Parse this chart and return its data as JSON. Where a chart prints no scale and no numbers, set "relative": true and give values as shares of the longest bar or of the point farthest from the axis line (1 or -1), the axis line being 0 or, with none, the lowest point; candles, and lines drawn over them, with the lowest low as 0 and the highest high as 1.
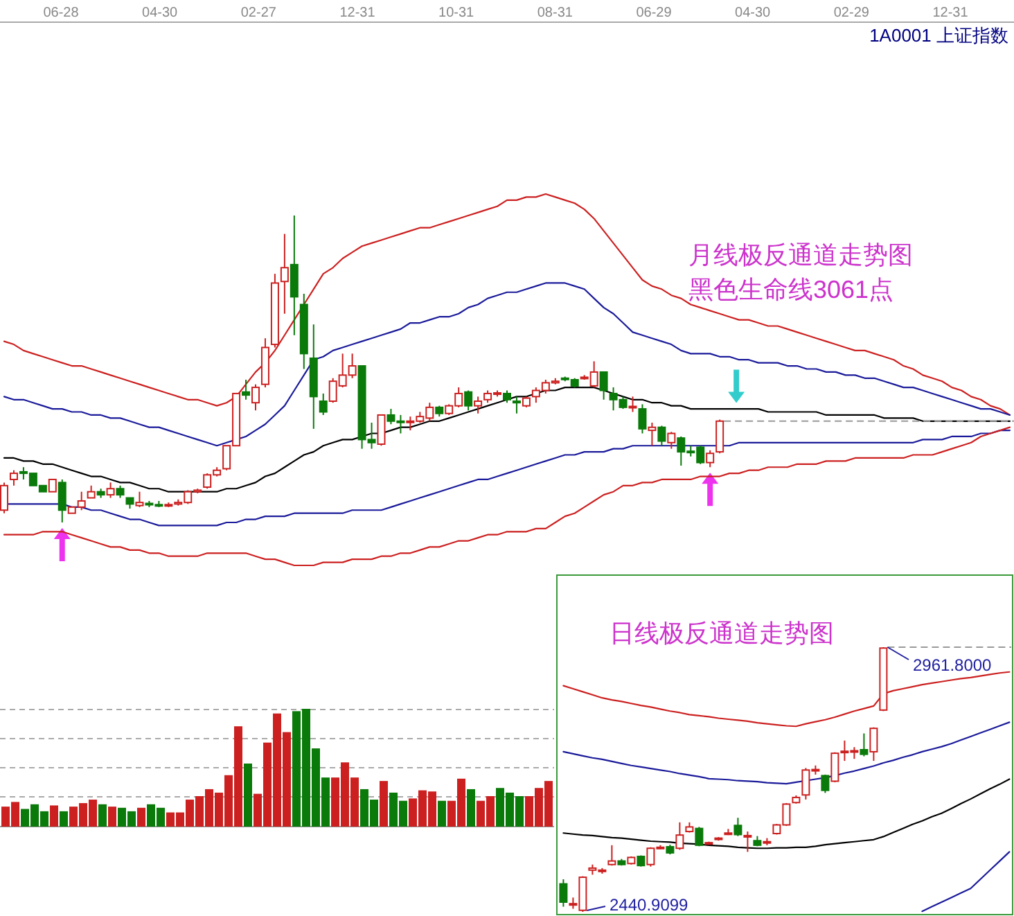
{
  "chart_data": [
    {
      "type": "other",
      "annotations": [
        "06-28",
        "04-30",
        "02-27",
        "12-31",
        "10-31",
        "08-31",
        "06-29",
        "04-30",
        "02-29",
        "12-31"
      ]
    },
    {
      "type": "candlestick",
      "title": "1A0001 上证指数",
      "relative": true,
      "categories": [
        null,
        null,
        null,
        null,
        null,
        null,
        null,
        null,
        null,
        null,
        null,
        null,
        null,
        null,
        null,
        null,
        null,
        null,
        null,
        null,
        null,
        null,
        null,
        null,
        null,
        null,
        null,
        null,
        null,
        null,
        null,
        null,
        null,
        null,
        null,
        null,
        null,
        null,
        null,
        null,
        null,
        null,
        null,
        null,
        null,
        null,
        null,
        null,
        null,
        null,
        null,
        null,
        null,
        null,
        null,
        null,
        null,
        null,
        null,
        null,
        null,
        null,
        null,
        null,
        null,
        null,
        null,
        null,
        null,
        null,
        null,
        null,
        null,
        null,
        null,
        null,
        null,
        null,
        null,
        null,
        null,
        null,
        null,
        null,
        null,
        null,
        null,
        null,
        null,
        null,
        null,
        null,
        null,
        null,
        null,
        null,
        null,
        null,
        null,
        null,
        null,
        null,
        null,
        null,
        null
      ],
      "ohlc": [
        [
          0.04,
          0.13,
          0.03,
          0.12
        ],
        [
          0.14,
          0.17,
          0.12,
          0.16
        ],
        [
          0.165,
          0.18,
          0.14,
          0.16
        ],
        [
          0.16,
          0.16,
          0.12,
          0.12
        ],
        [
          0.12,
          0.12,
          0.1,
          0.1
        ],
        [
          0.1,
          0.14,
          0.1,
          0.14
        ],
        [
          0.13,
          0.14,
          0,
          0.04
        ],
        [
          0.03,
          0.05,
          0.03,
          0.05
        ],
        [
          0.05,
          0.1,
          0.04,
          0.07
        ],
        [
          0.08,
          0.12,
          0.08,
          0.1
        ],
        [
          0.1,
          0.11,
          0.08,
          0.09
        ],
        [
          0.09,
          0.13,
          0.08,
          0.11
        ],
        [
          0.11,
          0.12,
          0.08,
          0.09
        ],
        [
          0.08,
          0.08,
          0.045,
          0.06
        ],
        [
          0.055,
          0.1,
          0.05,
          0.065
        ],
        [
          0.062,
          0.07,
          0.05,
          0.058
        ],
        [
          0.058,
          0.07,
          0.05,
          0.055
        ],
        [
          0.055,
          0.065,
          0.05,
          0.058
        ],
        [
          0.06,
          0.075,
          0.055,
          0.065
        ],
        [
          0.065,
          0.105,
          0.06,
          0.1
        ],
        [
          0.1,
          0.11,
          0.095,
          0.105
        ],
        [
          0.115,
          0.16,
          0.11,
          0.155
        ],
        [
          0.155,
          0.18,
          0.15,
          0.17
        ],
        [
          0.175,
          0.25,
          0.17,
          0.25
        ],
        [
          0.25,
          0.42,
          0.25,
          0.42
        ],
        [
          0.425,
          0.465,
          0.4,
          0.415
        ],
        [
          0.39,
          0.45,
          0.365,
          0.44
        ],
        [
          0.45,
          0.6,
          0.44,
          0.57
        ],
        [
          0.58,
          0.81,
          0.57,
          0.78
        ],
        [
          0.785,
          0.94,
          0.68,
          0.83
        ],
        [
          0.84,
          1,
          0.61,
          0.735
        ],
        [
          0.71,
          0.745,
          0.5,
          0.55
        ],
        [
          0.535,
          0.645,
          0.305,
          0.41
        ],
        [
          0.395,
          0.42,
          0.35,
          0.36
        ],
        [
          0.395,
          0.47,
          0.39,
          0.46
        ],
        [
          0.445,
          0.55,
          0.44,
          0.48
        ],
        [
          0.48,
          0.55,
          0.47,
          0.51
        ],
        [
          0.51,
          0.51,
          0.24,
          0.27
        ],
        [
          0.27,
          0.325,
          0.24,
          0.26
        ],
        [
          0.255,
          0.35,
          0.25,
          0.35
        ],
        [
          0.35,
          0.37,
          0.32,
          0.33
        ],
        [
          0.33,
          0.35,
          0.29,
          0.328
        ],
        [
          0.326,
          0.345,
          0.3,
          0.33
        ],
        [
          0.33,
          0.36,
          0.325,
          0.345
        ],
        [
          0.34,
          0.39,
          0.33,
          0.375
        ],
        [
          0.375,
          0.38,
          0.345,
          0.355
        ],
        [
          0.355,
          0.385,
          0.35,
          0.38
        ],
        [
          0.38,
          0.44,
          0.375,
          0.42
        ],
        [
          0.425,
          0.43,
          0.365,
          0.38
        ],
        [
          0.38,
          0.41,
          0.355,
          0.395
        ],
        [
          0.4,
          0.43,
          0.39,
          0.42
        ],
        [
          0.42,
          0.43,
          0.41,
          0.422
        ],
        [
          0.42,
          0.43,
          0.39,
          0.4
        ],
        [
          0.395,
          0.41,
          0.355,
          0.39
        ],
        [
          0.38,
          0.41,
          0.375,
          0.405
        ],
        [
          0.41,
          0.44,
          0.39,
          0.43
        ],
        [
          0.43,
          0.465,
          0.42,
          0.455
        ],
        [
          0.455,
          0.47,
          0.45,
          0.46
        ],
        [
          0.47,
          0.475,
          0.46,
          0.468
        ],
        [
          0.465,
          0.47,
          0.44,
          0.445
        ],
        [
          0.47,
          0.48,
          0.465,
          0.473
        ],
        [
          0.445,
          0.525,
          0.44,
          0.49
        ],
        [
          0.49,
          0.49,
          0.4,
          0.43
        ],
        [
          0.42,
          0.44,
          0.365,
          0.4
        ],
        [
          0.4,
          0.41,
          0.37,
          0.375
        ],
        [
          0.375,
          0.41,
          0.36,
          0.378
        ],
        [
          0.37,
          0.385,
          0.29,
          0.305
        ],
        [
          0.3,
          0.325,
          0.25,
          0.31
        ],
        [
          0.31,
          0.315,
          0.25,
          0.265
        ],
        [
          0.26,
          0.295,
          0.24,
          0.29
        ],
        [
          0.275,
          0.28,
          0.185,
          0.23
        ],
        [
          0.232,
          0.25,
          0.215,
          0.228
        ],
        [
          0.245,
          0.25,
          0.19,
          0.195
        ],
        [
          0.195,
          0.235,
          0.18,
          0.225
        ],
        [
          0.23,
          0.335,
          0.225,
          0.33
        ],
        null,
        null,
        null,
        null,
        null,
        null,
        null,
        null,
        null,
        null,
        null,
        null,
        null,
        null,
        null,
        null,
        null,
        null,
        null,
        null,
        null,
        null,
        null,
        null,
        null,
        null,
        null,
        null,
        null,
        null
      ],
      "series": [
        {
          "type": "line",
          "color": "#cc2020",
          "values": [
            0.59,
            0.58,
            0.56,
            0.55,
            0.54,
            0.53,
            0.52,
            0.51,
            0.51,
            0.5,
            0.49,
            0.48,
            0.47,
            0.46,
            0.45,
            0.44,
            0.43,
            0.42,
            0.41,
            0.4,
            0.4,
            0.39,
            0.38,
            0.39,
            0.41,
            0.45,
            0.49,
            0.52,
            0.56,
            0.61,
            0.66,
            0.71,
            0.76,
            0.81,
            0.83,
            0.86,
            0.88,
            0.9,
            0.91,
            0.92,
            0.93,
            0.94,
            0.95,
            0.96,
            0.96,
            0.97,
            0.98,
            0.99,
            1.0,
            1.01,
            1.02,
            1.03,
            1.05,
            1.05,
            1.06,
            1.06,
            1.07,
            1.06,
            1.05,
            1.04,
            1.02,
            0.99,
            0.95,
            0.91,
            0.87,
            0.83,
            0.79,
            0.77,
            0.76,
            0.74,
            0.73,
            0.71,
            0.7,
            0.69,
            0.68,
            0.67,
            0.66,
            0.66,
            0.65,
            0.64,
            0.64,
            0.63,
            0.62,
            0.61,
            0.6,
            0.59,
            0.58,
            0.57,
            0.56,
            0.56,
            0.55,
            0.54,
            0.53,
            0.51,
            0.5,
            0.48,
            0.47,
            0.46,
            0.44,
            0.43,
            0.41,
            0.4,
            0.38,
            0.37,
            0.35
          ]
        },
        {
          "type": "line",
          "color": "#1a1a9a",
          "values": [
            0.41,
            0.4,
            0.4,
            0.39,
            0.38,
            0.37,
            0.37,
            0.36,
            0.36,
            0.35,
            0.35,
            0.34,
            0.34,
            0.33,
            0.32,
            0.31,
            0.31,
            0.3,
            0.29,
            0.28,
            0.27,
            0.26,
            0.25,
            0.26,
            0.27,
            0.28,
            0.3,
            0.32,
            0.35,
            0.38,
            0.43,
            0.48,
            0.53,
            0.54,
            0.56,
            0.57,
            0.58,
            0.59,
            0.6,
            0.61,
            0.62,
            0.63,
            0.65,
            0.65,
            0.66,
            0.67,
            0.67,
            0.68,
            0.7,
            0.71,
            0.73,
            0.74,
            0.75,
            0.75,
            0.76,
            0.77,
            0.78,
            0.78,
            0.78,
            0.77,
            0.76,
            0.73,
            0.7,
            0.68,
            0.65,
            0.62,
            0.61,
            0.6,
            0.59,
            0.58,
            0.56,
            0.55,
            0.55,
            0.55,
            0.54,
            0.54,
            0.53,
            0.53,
            0.52,
            0.52,
            0.52,
            0.51,
            0.51,
            0.5,
            0.5,
            0.49,
            0.49,
            0.48,
            0.48,
            0.47,
            0.47,
            0.46,
            0.45,
            0.44,
            0.44,
            0.43,
            0.42,
            0.41,
            0.4,
            0.39,
            0.38,
            0.37,
            0.37,
            0.36,
            0.35
          ]
        },
        {
          "type": "line",
          "color": "#000000",
          "values": [
            0.21,
            0.21,
            0.2,
            0.2,
            0.19,
            0.19,
            0.18,
            0.17,
            0.16,
            0.15,
            0.15,
            0.14,
            0.13,
            0.13,
            0.12,
            0.11,
            0.11,
            0.1,
            0.1,
            0.1,
            0.1,
            0.1,
            0.1,
            0.11,
            0.11,
            0.12,
            0.13,
            0.15,
            0.16,
            0.18,
            0.2,
            0.22,
            0.23,
            0.25,
            0.26,
            0.27,
            0.27,
            0.28,
            0.29,
            0.29,
            0.3,
            0.31,
            0.31,
            0.32,
            0.33,
            0.33,
            0.34,
            0.35,
            0.36,
            0.37,
            0.38,
            0.39,
            0.4,
            0.41,
            0.41,
            0.42,
            0.43,
            0.43,
            0.44,
            0.44,
            0.44,
            0.44,
            0.43,
            0.42,
            0.41,
            0.4,
            0.4,
            0.39,
            0.39,
            0.38,
            0.38,
            0.37,
            0.37,
            0.37,
            0.37,
            0.37,
            0.37,
            0.37,
            0.37,
            0.36,
            0.36,
            0.36,
            0.36,
            0.36,
            0.36,
            0.35,
            0.35,
            0.35,
            0.35,
            0.35,
            0.35,
            0.34,
            0.34,
            0.34,
            0.34,
            0.33,
            0.33,
            0.33,
            0.33,
            0.33,
            0.33,
            0.33,
            0.33,
            0.33,
            0.33
          ]
        },
        {
          "type": "line",
          "color": "#1a1a9a",
          "values": [
            0.06,
            0.06,
            0.06,
            0.06,
            0.06,
            0.06,
            0.06,
            0.05,
            0.05,
            0.04,
            0.04,
            0.03,
            0.02,
            0.01,
            0.01,
            0,
            -0.01,
            -0.01,
            -0.01,
            -0.01,
            -0.01,
            -0.01,
            -0.01,
            0,
            0,
            0.01,
            0.01,
            0.02,
            0.02,
            0.02,
            0.03,
            0.03,
            0.03,
            0.03,
            0.03,
            0.03,
            0.04,
            0.04,
            0.04,
            0.04,
            0.05,
            0.06,
            0.07,
            0.08,
            0.09,
            0.1,
            0.11,
            0.12,
            0.13,
            0.14,
            0.14,
            0.15,
            0.16,
            0.17,
            0.18,
            0.19,
            0.2,
            0.21,
            0.22,
            0.22,
            0.23,
            0.23,
            0.23,
            0.24,
            0.24,
            0.25,
            0.25,
            0.25,
            0.25,
            0.25,
            0.25,
            0.25,
            0.25,
            0.25,
            0.25,
            0.25,
            0.26,
            0.26,
            0.26,
            0.26,
            0.26,
            0.26,
            0.26,
            0.26,
            0.26,
            0.26,
            0.26,
            0.26,
            0.26,
            0.26,
            0.26,
            0.26,
            0.26,
            0.26,
            0.26,
            0.27,
            0.27,
            0.27,
            0.28,
            0.28,
            0.28,
            0.29,
            0.29,
            0.3,
            0.3
          ]
        },
        {
          "type": "line",
          "color": "#cc2020",
          "values": [
            -0.04,
            -0.04,
            -0.04,
            -0.04,
            -0.03,
            -0.03,
            -0.03,
            -0.04,
            -0.05,
            -0.06,
            -0.07,
            -0.08,
            -0.08,
            -0.09,
            -0.09,
            -0.1,
            -0.1,
            -0.11,
            -0.11,
            -0.11,
            -0.11,
            -0.1,
            -0.1,
            -0.1,
            -0.1,
            -0.1,
            -0.11,
            -0.12,
            -0.12,
            -0.13,
            -0.14,
            -0.14,
            -0.14,
            -0.13,
            -0.13,
            -0.13,
            -0.12,
            -0.12,
            -0.12,
            -0.11,
            -0.11,
            -0.1,
            -0.1,
            -0.09,
            -0.08,
            -0.08,
            -0.07,
            -0.06,
            -0.06,
            -0.05,
            -0.04,
            -0.04,
            -0.03,
            -0.03,
            -0.03,
            -0.02,
            -0.02,
            0,
            0.02,
            0.03,
            0.05,
            0.07,
            0.09,
            0.1,
            0.12,
            0.12,
            0.13,
            0.13,
            0.14,
            0.14,
            0.14,
            0.14,
            0.15,
            0.15,
            0.15,
            0.16,
            0.16,
            0.17,
            0.17,
            0.18,
            0.18,
            0.18,
            0.19,
            0.19,
            0.19,
            0.2,
            0.2,
            0.2,
            0.21,
            0.21,
            0.21,
            0.21,
            0.21,
            0.21,
            0.22,
            0.22,
            0.22,
            0.23,
            0.24,
            0.25,
            0.26,
            0.28,
            0.29,
            0.3,
            0.31
          ]
        }
      ],
      "ref_lines": [
        {
          "axis": "y",
          "value": 0.33,
          "color": "#999999",
          "line_style": "dashed"
        }
      ],
      "annotations": [
        "月线极反通道走势图",
        "黑色生命线3061点"
      ]
    },
    {
      "type": "bar",
      "relative": true,
      "grid": "y",
      "categories": [
        null,
        null,
        null,
        null,
        null,
        null,
        null,
        null,
        null,
        null,
        null,
        null,
        null,
        null,
        null,
        null,
        null,
        null,
        null,
        null,
        null,
        null,
        null,
        null,
        null,
        null,
        null,
        null,
        null,
        null,
        null,
        null,
        null,
        null,
        null,
        null,
        null,
        null,
        null,
        null,
        null,
        null,
        null,
        null,
        null,
        null,
        null,
        null,
        null,
        null,
        null,
        null,
        null,
        null,
        null,
        null,
        null
      ],
      "values": [
        0.16,
        0.2,
        0.14,
        0.18,
        0.12,
        0.17,
        0.12,
        0.16,
        0.19,
        0.22,
        0.18,
        0.16,
        0.15,
        0.12,
        0.15,
        0.18,
        0.15,
        0.11,
        0.11,
        0.22,
        0.25,
        0.31,
        0.28,
        0.43,
        0.85,
        0.53,
        0.27,
        0.71,
        0.96,
        0.8,
        0.98,
        1,
        0.66,
        0.41,
        0.41,
        0.54,
        0.41,
        0.31,
        0.22,
        0.38,
        0.28,
        0.21,
        0.23,
        0.3,
        0.29,
        0.21,
        0.21,
        0.4,
        0.31,
        0.21,
        0.25,
        0.32,
        0.28,
        0.25,
        0.25,
        0.32,
        0.38
      ],
      "colors": [
        "#cc2020",
        "#cc2020",
        "#0a7a0a",
        "#0a7a0a",
        "#0a7a0a",
        "#cc2020",
        "#0a7a0a",
        "#cc2020",
        "#cc2020",
        "#cc2020",
        "#0a7a0a",
        "#cc2020",
        "#0a7a0a",
        "#0a7a0a",
        "#cc2020",
        "#0a7a0a",
        "#0a7a0a",
        "#cc2020",
        "#cc2020",
        "#cc2020",
        "#cc2020",
        "#cc2020",
        "#cc2020",
        "#cc2020",
        "#cc2020",
        "#0a7a0a",
        "#cc2020",
        "#cc2020",
        "#cc2020",
        "#cc2020",
        "#0a7a0a",
        "#0a7a0a",
        "#0a7a0a",
        "#0a7a0a",
        "#cc2020",
        "#cc2020",
        "#cc2020",
        "#0a7a0a",
        "#0a7a0a",
        "#cc2020",
        "#0a7a0a",
        "#0a7a0a",
        "#cc2020",
        "#cc2020",
        "#cc2020",
        "#0a7a0a",
        "#cc2020",
        "#cc2020",
        "#0a7a0a",
        "#cc2020",
        "#cc2020",
        "#0a7a0a",
        "#0a7a0a",
        "#0a7a0a",
        "#cc2020",
        "#cc2020",
        "#cc2020"
      ]
    },
    {
      "type": "candlestick",
      "title": "日线极反通道走势图",
      "categories": [
        null,
        null,
        null,
        null,
        null,
        null,
        null,
        null,
        null,
        null,
        null,
        null,
        null,
        null,
        null,
        null,
        null,
        null,
        null,
        null,
        null,
        null,
        null,
        null,
        null,
        null,
        null,
        null,
        null,
        null,
        null,
        null,
        null,
        null,
        null,
        null,
        null,
        null,
        null,
        null,
        null,
        null,
        null,
        null,
        null,
        null,
        null
      ],
      "ohlc": [
        [
          2496,
          2505,
          2451,
          2460
        ],
        [
          2455,
          2469,
          2447,
          2457
        ],
        [
          2444,
          2511,
          2440.9099,
          2509
        ],
        [
          2523,
          2534,
          2514,
          2527
        ],
        [
          2521,
          2527,
          2516,
          2523
        ],
        [
          2534,
          2572,
          2532,
          2541
        ],
        [
          2541,
          2545,
          2532,
          2534
        ],
        [
          2536,
          2550,
          2534,
          2548
        ],
        [
          2550,
          2552,
          2530,
          2532
        ],
        [
          2534,
          2568,
          2530,
          2566
        ],
        [
          2566,
          2572,
          2564,
          2568
        ],
        [
          2569,
          2573,
          2554,
          2557
        ],
        [
          2566,
          2617,
          2563,
          2592
        ],
        [
          2599,
          2617,
          2597,
          2608
        ],
        [
          2605,
          2608,
          2570,
          2572
        ],
        [
          2575,
          2579,
          2573,
          2577
        ],
        [
          2584,
          2588,
          2581,
          2586
        ],
        [
          2594,
          2604,
          2592,
          2596
        ],
        [
          2611,
          2626,
          2590,
          2593
        ],
        [
          2589,
          2599,
          2559,
          2591
        ],
        [
          2581,
          2590,
          2570,
          2572
        ],
        [
          2577,
          2586,
          2572,
          2579
        ],
        [
          2595,
          2614,
          2593,
          2612
        ],
        [
          2612,
          2655,
          2610,
          2653
        ],
        [
          2656,
          2670,
          2654,
          2666
        ],
        [
          2671,
          2724,
          2662,
          2720
        ],
        [
          2719,
          2729,
          2711,
          2721
        ],
        [
          2709,
          2711,
          2675,
          2680
        ],
        [
          2698,
          2755,
          2696,
          2753
        ],
        [
          2755,
          2778,
          2738,
          2757
        ],
        [
          2756,
          2765,
          2742,
          2758
        ],
        [
          2760,
          2792,
          2747,
          2751
        ],
        [
          2756,
          2804,
          2738,
          2802
        ],
        [
          2838,
          2961.8,
          2836,
          2960
        ],
        null,
        null,
        null,
        null,
        null,
        null,
        null,
        null,
        null,
        null,
        null,
        null,
        null
      ],
      "series": [
        {
          "type": "line",
          "color": "#cc2020",
          "values": [
            2886,
            2880,
            2874,
            2868,
            2862,
            2858,
            2855,
            2851,
            2847,
            2844,
            2840,
            2836,
            2833,
            2829,
            2827,
            2825,
            2822,
            2820,
            2818,
            2816,
            2813,
            2811,
            2809,
            2807,
            2806,
            2811,
            2815,
            2819,
            2824,
            2830,
            2836,
            2841,
            2846,
            2870,
            2876,
            2880,
            2884,
            2888,
            2891,
            2894,
            2897,
            2900,
            2902,
            2905,
            2908,
            2911,
            2913
          ]
        },
        {
          "type": "line",
          "color": "#1a1a9a",
          "values": [
            2756,
            2752,
            2748,
            2744,
            2741,
            2737,
            2733,
            2729,
            2726,
            2723,
            2720,
            2717,
            2713,
            2710,
            2707,
            2703,
            2702,
            2701,
            2699,
            2698,
            2697,
            2695,
            2694,
            2693,
            2696,
            2699,
            2702,
            2705,
            2709,
            2714,
            2718,
            2723,
            2728,
            2734,
            2739,
            2745,
            2750,
            2756,
            2761,
            2766,
            2772,
            2779,
            2786,
            2793,
            2800,
            2807,
            2814
          ]
        },
        {
          "type": "line",
          "color": "#000000",
          "values": [
            2596,
            2594,
            2592,
            2591,
            2589,
            2587,
            2586,
            2584,
            2582,
            2580,
            2579,
            2578,
            2576,
            2575,
            2574,
            2572,
            2571,
            2570,
            2568,
            2567,
            2566,
            2566,
            2567,
            2567,
            2568,
            2568,
            2570,
            2573,
            2575,
            2577,
            2579,
            2581,
            2583,
            2589,
            2597,
            2605,
            2613,
            2620,
            2628,
            2635,
            2644,
            2654,
            2663,
            2673,
            2683,
            2692,
            2702
          ]
        },
        {
          "type": "line",
          "color": "#1a1a9a",
          "values": [
            null,
            null,
            null,
            null,
            null,
            null,
            null,
            null,
            null,
            null,
            null,
            null,
            null,
            null,
            null,
            null,
            null,
            null,
            null,
            null,
            null,
            null,
            null,
            null,
            null,
            null,
            null,
            null,
            null,
            null,
            null,
            null,
            null,
            null,
            null,
            null,
            null,
            2442,
            2451,
            2460,
            2469,
            2478,
            2487,
            2505,
            2523,
            2541,
            2559
          ]
        }
      ],
      "ref_lines": [
        {
          "axis": "y",
          "value": 2961.8,
          "color": "#999999",
          "line_style": "dashed"
        }
      ],
      "annotations": [
        "2961.8000",
        "2440.9099"
      ]
    }
  ]
}
